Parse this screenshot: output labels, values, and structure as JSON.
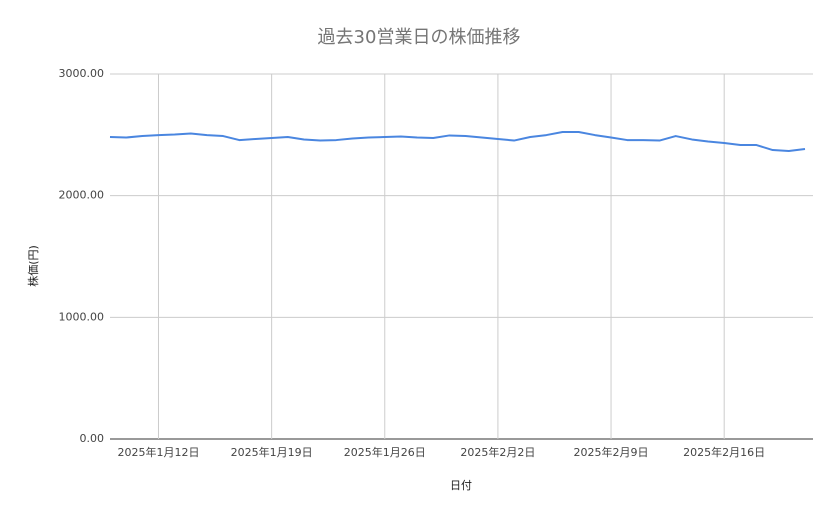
{
  "chart_data": {
    "type": "line",
    "title": "過去30営業日の株価推移",
    "x_label": "日付",
    "y_label": "株価(円)",
    "x": [
      "2025-01-09",
      "2025-01-10",
      "2025-01-11",
      "2025-01-12",
      "2025-01-13",
      "2025-01-14",
      "2025-01-15",
      "2025-01-16",
      "2025-01-17",
      "2025-01-18",
      "2025-01-19",
      "2025-01-20",
      "2025-01-21",
      "2025-01-22",
      "2025-01-23",
      "2025-01-24",
      "2025-01-25",
      "2025-01-26",
      "2025-01-27",
      "2025-01-28",
      "2025-01-29",
      "2025-01-30",
      "2025-01-31",
      "2025-02-01",
      "2025-02-02",
      "2025-02-03",
      "2025-02-04",
      "2025-02-05",
      "2025-02-06",
      "2025-02-07",
      "2025-02-08",
      "2025-02-09",
      "2025-02-10",
      "2025-02-11",
      "2025-02-12",
      "2025-02-13",
      "2025-02-14",
      "2025-02-15",
      "2025-02-16",
      "2025-02-17",
      "2025-02-18",
      "2025-02-19",
      "2025-02-20",
      "2025-02-21"
    ],
    "series": [
      {
        "name": "株価",
        "color": "#4a86e0",
        "values": [
          2482,
          2478,
          2490,
          2498,
          2503,
          2511,
          2498,
          2490,
          2457,
          2466,
          2474,
          2482,
          2462,
          2453,
          2457,
          2470,
          2478,
          2482,
          2486,
          2478,
          2474,
          2495,
          2490,
          2478,
          2466,
          2453,
          2482,
          2498,
          2523,
          2523,
          2498,
          2478,
          2457,
          2457,
          2453,
          2490,
          2462,
          2445,
          2433,
          2416,
          2416,
          2375,
          2367,
          2384
        ]
      }
    ],
    "xlim": [
      "2025-01-09",
      "2025-02-21"
    ],
    "xticks": [
      {
        "value": "2025-01-12",
        "label": "2025年1月12日"
      },
      {
        "value": "2025-01-19",
        "label": "2025年1月19日"
      },
      {
        "value": "2025-01-26",
        "label": "2025年1月26日"
      },
      {
        "value": "2025-02-02",
        "label": "2025年2月2日"
      },
      {
        "value": "2025-02-09",
        "label": "2025年2月9日"
      },
      {
        "value": "2025-02-16",
        "label": "2025年2月16日"
      }
    ],
    "ylim": [
      0,
      3000
    ],
    "yticks": [
      {
        "value": 0,
        "label": "0.00"
      },
      {
        "value": 1000,
        "label": "1000.00"
      },
      {
        "value": 2000,
        "label": "2000.00"
      },
      {
        "value": 3000,
        "label": "3000.00"
      }
    ],
    "grid": true
  }
}
